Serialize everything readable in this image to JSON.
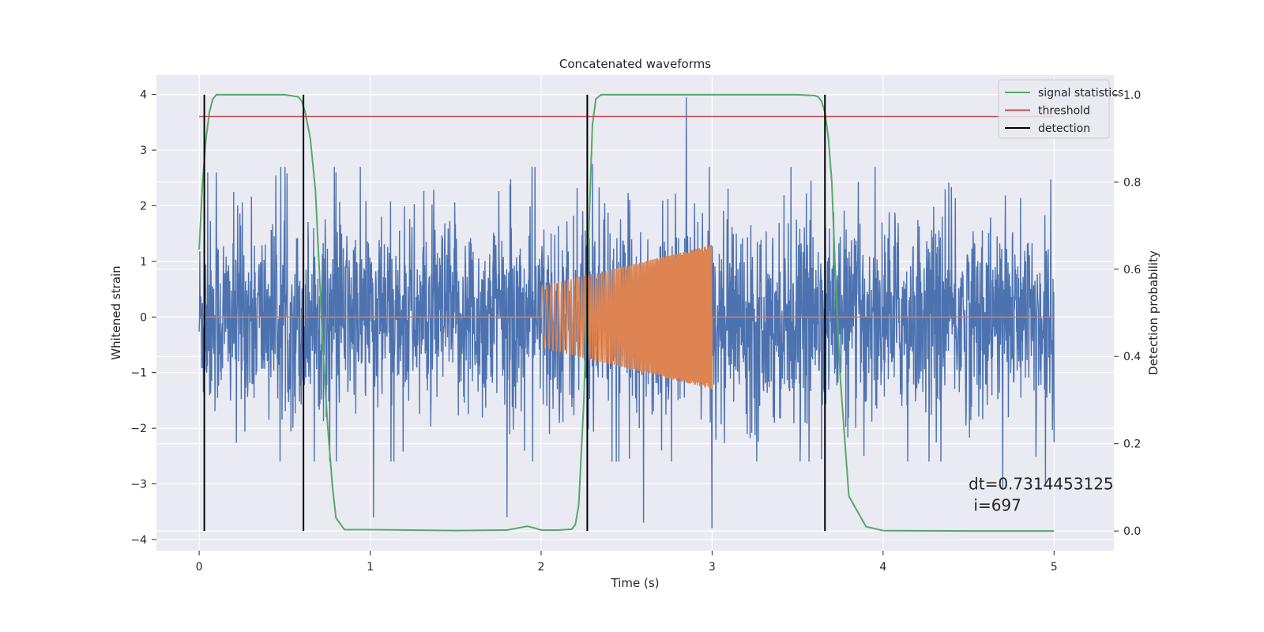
{
  "chart_data": {
    "type": "line",
    "title": "Concatenated waveforms",
    "xlabel": "Time (s)",
    "ylabel": "Whitened strain",
    "y2label": "Detection probability",
    "xlim": [
      -0.25,
      5.35
    ],
    "ylim": [
      -4.2,
      4.35
    ],
    "y2lim": [
      -0.045,
      1.045
    ],
    "x_ticks": [
      0,
      1,
      2,
      3,
      4,
      5
    ],
    "y_ticks": [
      -4,
      -3,
      -2,
      -1,
      0,
      1,
      2,
      3,
      4
    ],
    "y2_ticks": [
      0.0,
      0.2,
      0.4,
      0.6,
      0.8,
      1.0
    ],
    "x_tick_labels": [
      "0",
      "1",
      "2",
      "3",
      "4",
      "5"
    ],
    "y_tick_labels": [
      "−4",
      "−3",
      "−2",
      "−1",
      "0",
      "1",
      "2",
      "3",
      "4"
    ],
    "y2_tick_labels": [
      "0.0",
      "0.2",
      "0.4",
      "0.6",
      "0.8",
      "1.0"
    ],
    "grid": true,
    "background": "#EAEAF2",
    "legend_position": "top-right",
    "series": [
      {
        "name": "",
        "axis": "left",
        "color": "#4C72B0",
        "kind": "noise",
        "x_range": [
          0,
          5
        ],
        "typical_amplitude": 1.3,
        "peak_values": [
          {
            "x": 0.05,
            "y": 2.6
          },
          {
            "x": 0.1,
            "y": 2.6
          },
          {
            "x": 0.8,
            "y": 2.6
          },
          {
            "x": 1.02,
            "y": -3.6
          },
          {
            "x": 1.8,
            "y": -3.6
          },
          {
            "x": 2.3,
            "y": 2.75
          },
          {
            "x": 2.6,
            "y": -3.7
          },
          {
            "x": 2.85,
            "y": 3.95
          },
          {
            "x": 3.0,
            "y": -3.8
          },
          {
            "x": 4.7,
            "y": -3.1
          },
          {
            "x": 4.95,
            "y": -3.0
          }
        ]
      },
      {
        "name": "",
        "axis": "left",
        "color": "#DD8452",
        "kind": "chirp",
        "x_range": [
          0,
          5
        ],
        "chirp_start": 2.0,
        "chirp_end": 3.0,
        "amplitude_start": 0.55,
        "amplitude_end": 1.3,
        "flat_value": 0
      },
      {
        "name": "signal statistics",
        "axis": "right",
        "color": "#55A868",
        "x": [
          0,
          0.02,
          0.04,
          0.06,
          0.08,
          0.1,
          0.15,
          0.3,
          0.5,
          0.58,
          0.6,
          0.62,
          0.65,
          0.68,
          0.7,
          0.72,
          0.75,
          0.78,
          0.8,
          0.85,
          1.0,
          1.5,
          1.8,
          1.88,
          1.92,
          1.96,
          2.0,
          2.1,
          2.18,
          2.2,
          2.22,
          2.25,
          2.28,
          2.3,
          2.32,
          2.35,
          2.5,
          3.0,
          3.5,
          3.6,
          3.62,
          3.64,
          3.66,
          3.68,
          3.7,
          3.72,
          3.75,
          3.8,
          3.9,
          4.0,
          4.5,
          5.0
        ],
        "y": [
          0.645,
          0.8,
          0.9,
          0.96,
          0.99,
          1.0,
          1.0,
          1.0,
          1.0,
          0.995,
          0.985,
          0.96,
          0.9,
          0.78,
          0.62,
          0.45,
          0.25,
          0.1,
          0.03,
          0.003,
          0.003,
          0.001,
          0.002,
          0.008,
          0.011,
          0.007,
          0.002,
          0.002,
          0.004,
          0.015,
          0.06,
          0.3,
          0.7,
          0.93,
          0.99,
          1.0,
          1.0,
          1.0,
          1.0,
          0.998,
          0.995,
          0.985,
          0.96,
          0.9,
          0.8,
          0.6,
          0.35,
          0.08,
          0.01,
          0.001,
          0.0,
          0.0
        ]
      },
      {
        "name": "threshold",
        "axis": "right",
        "color": "#C44E52",
        "x": [
          0,
          5
        ],
        "y": [
          0.95,
          0.95
        ]
      },
      {
        "name": "detection",
        "axis": "right",
        "color": "#000000",
        "kind": "vlines",
        "x": [
          0.03,
          0.61,
          2.27,
          3.66
        ],
        "y_range": [
          0.0,
          1.0
        ]
      }
    ],
    "legend": [
      "signal statistics",
      "threshold",
      "detection"
    ],
    "annotation": {
      "line1": "dt=0.7314453125",
      "line2": " i=697",
      "x": 4.5,
      "y": -3.0
    }
  }
}
